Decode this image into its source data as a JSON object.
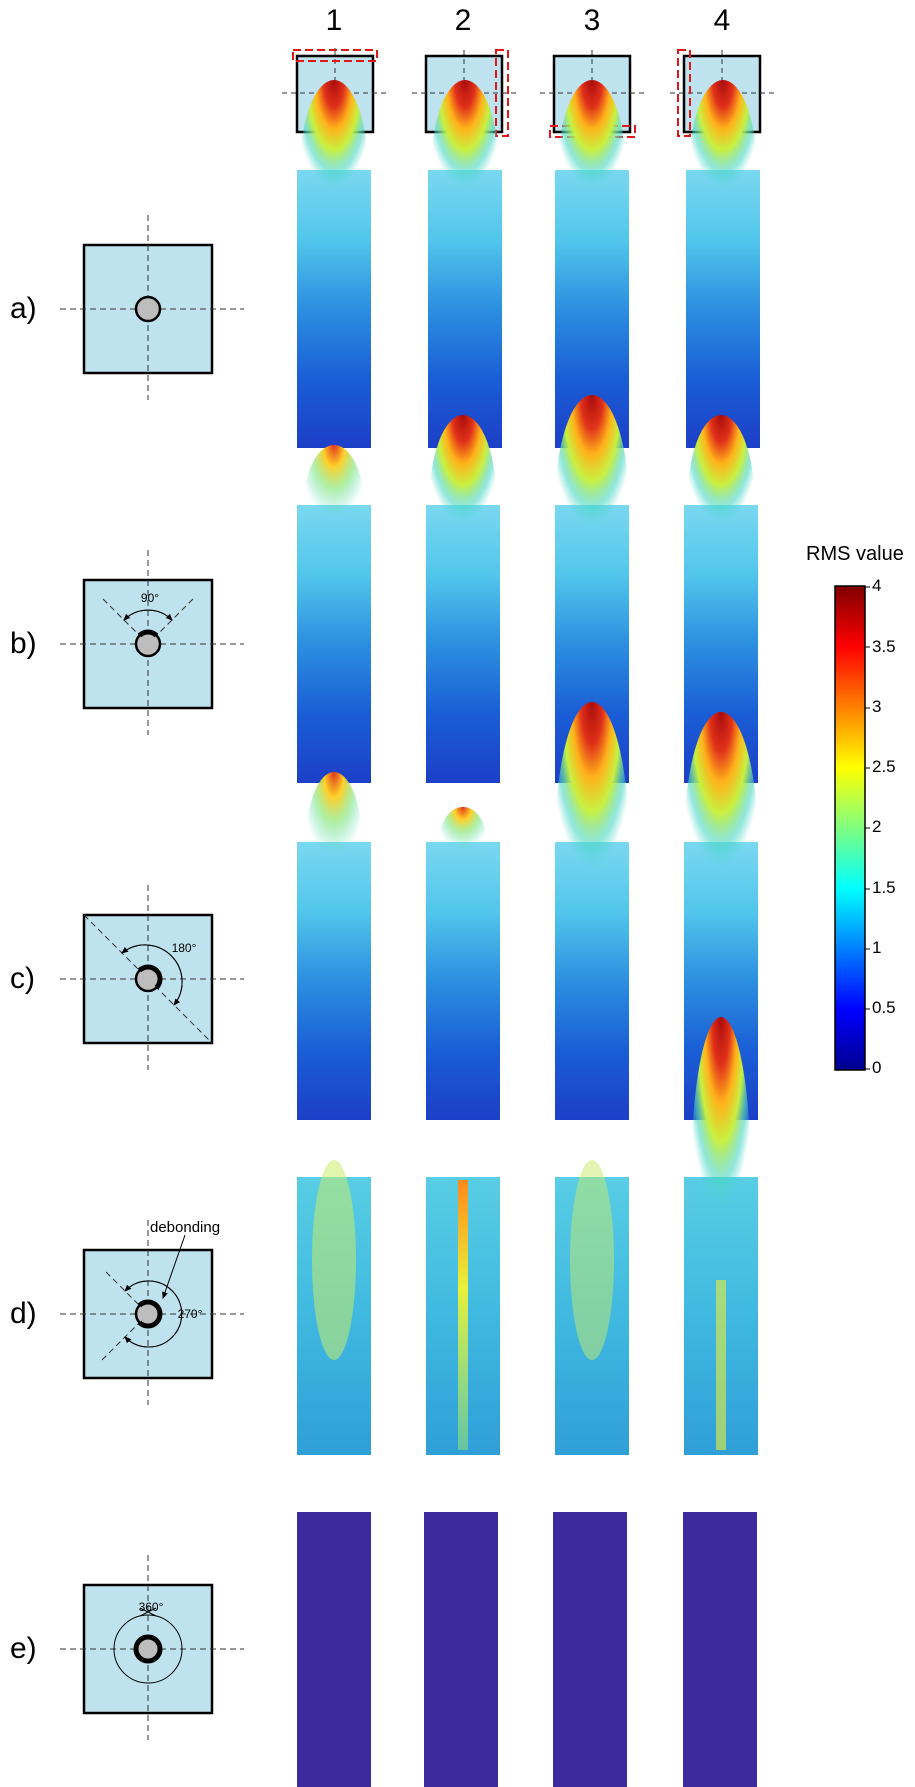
{
  "columns": [
    "1",
    "2",
    "3",
    "4"
  ],
  "rows": [
    {
      "label": "a)",
      "angle": ""
    },
    {
      "label": "b)",
      "angle": "90°"
    },
    {
      "label": "c)",
      "angle": "180°"
    },
    {
      "label": "d)",
      "angle": "270°",
      "annotation": "debonding"
    },
    {
      "label": "e)",
      "angle": "360°"
    }
  ],
  "colorbar": {
    "title": "RMS value",
    "ticks": [
      "4",
      "3.5",
      "3",
      "2.5",
      "2",
      "1.5",
      "1",
      "0.5",
      "0"
    ],
    "colormap": "jet",
    "range": [
      0,
      4
    ]
  },
  "colors": {
    "section_fill": "#bfe3ee",
    "damage_marker": "#e01818",
    "bar_fill_grey": "#bdbdbd",
    "uniform_low_rms": "#3d2a9c"
  }
}
